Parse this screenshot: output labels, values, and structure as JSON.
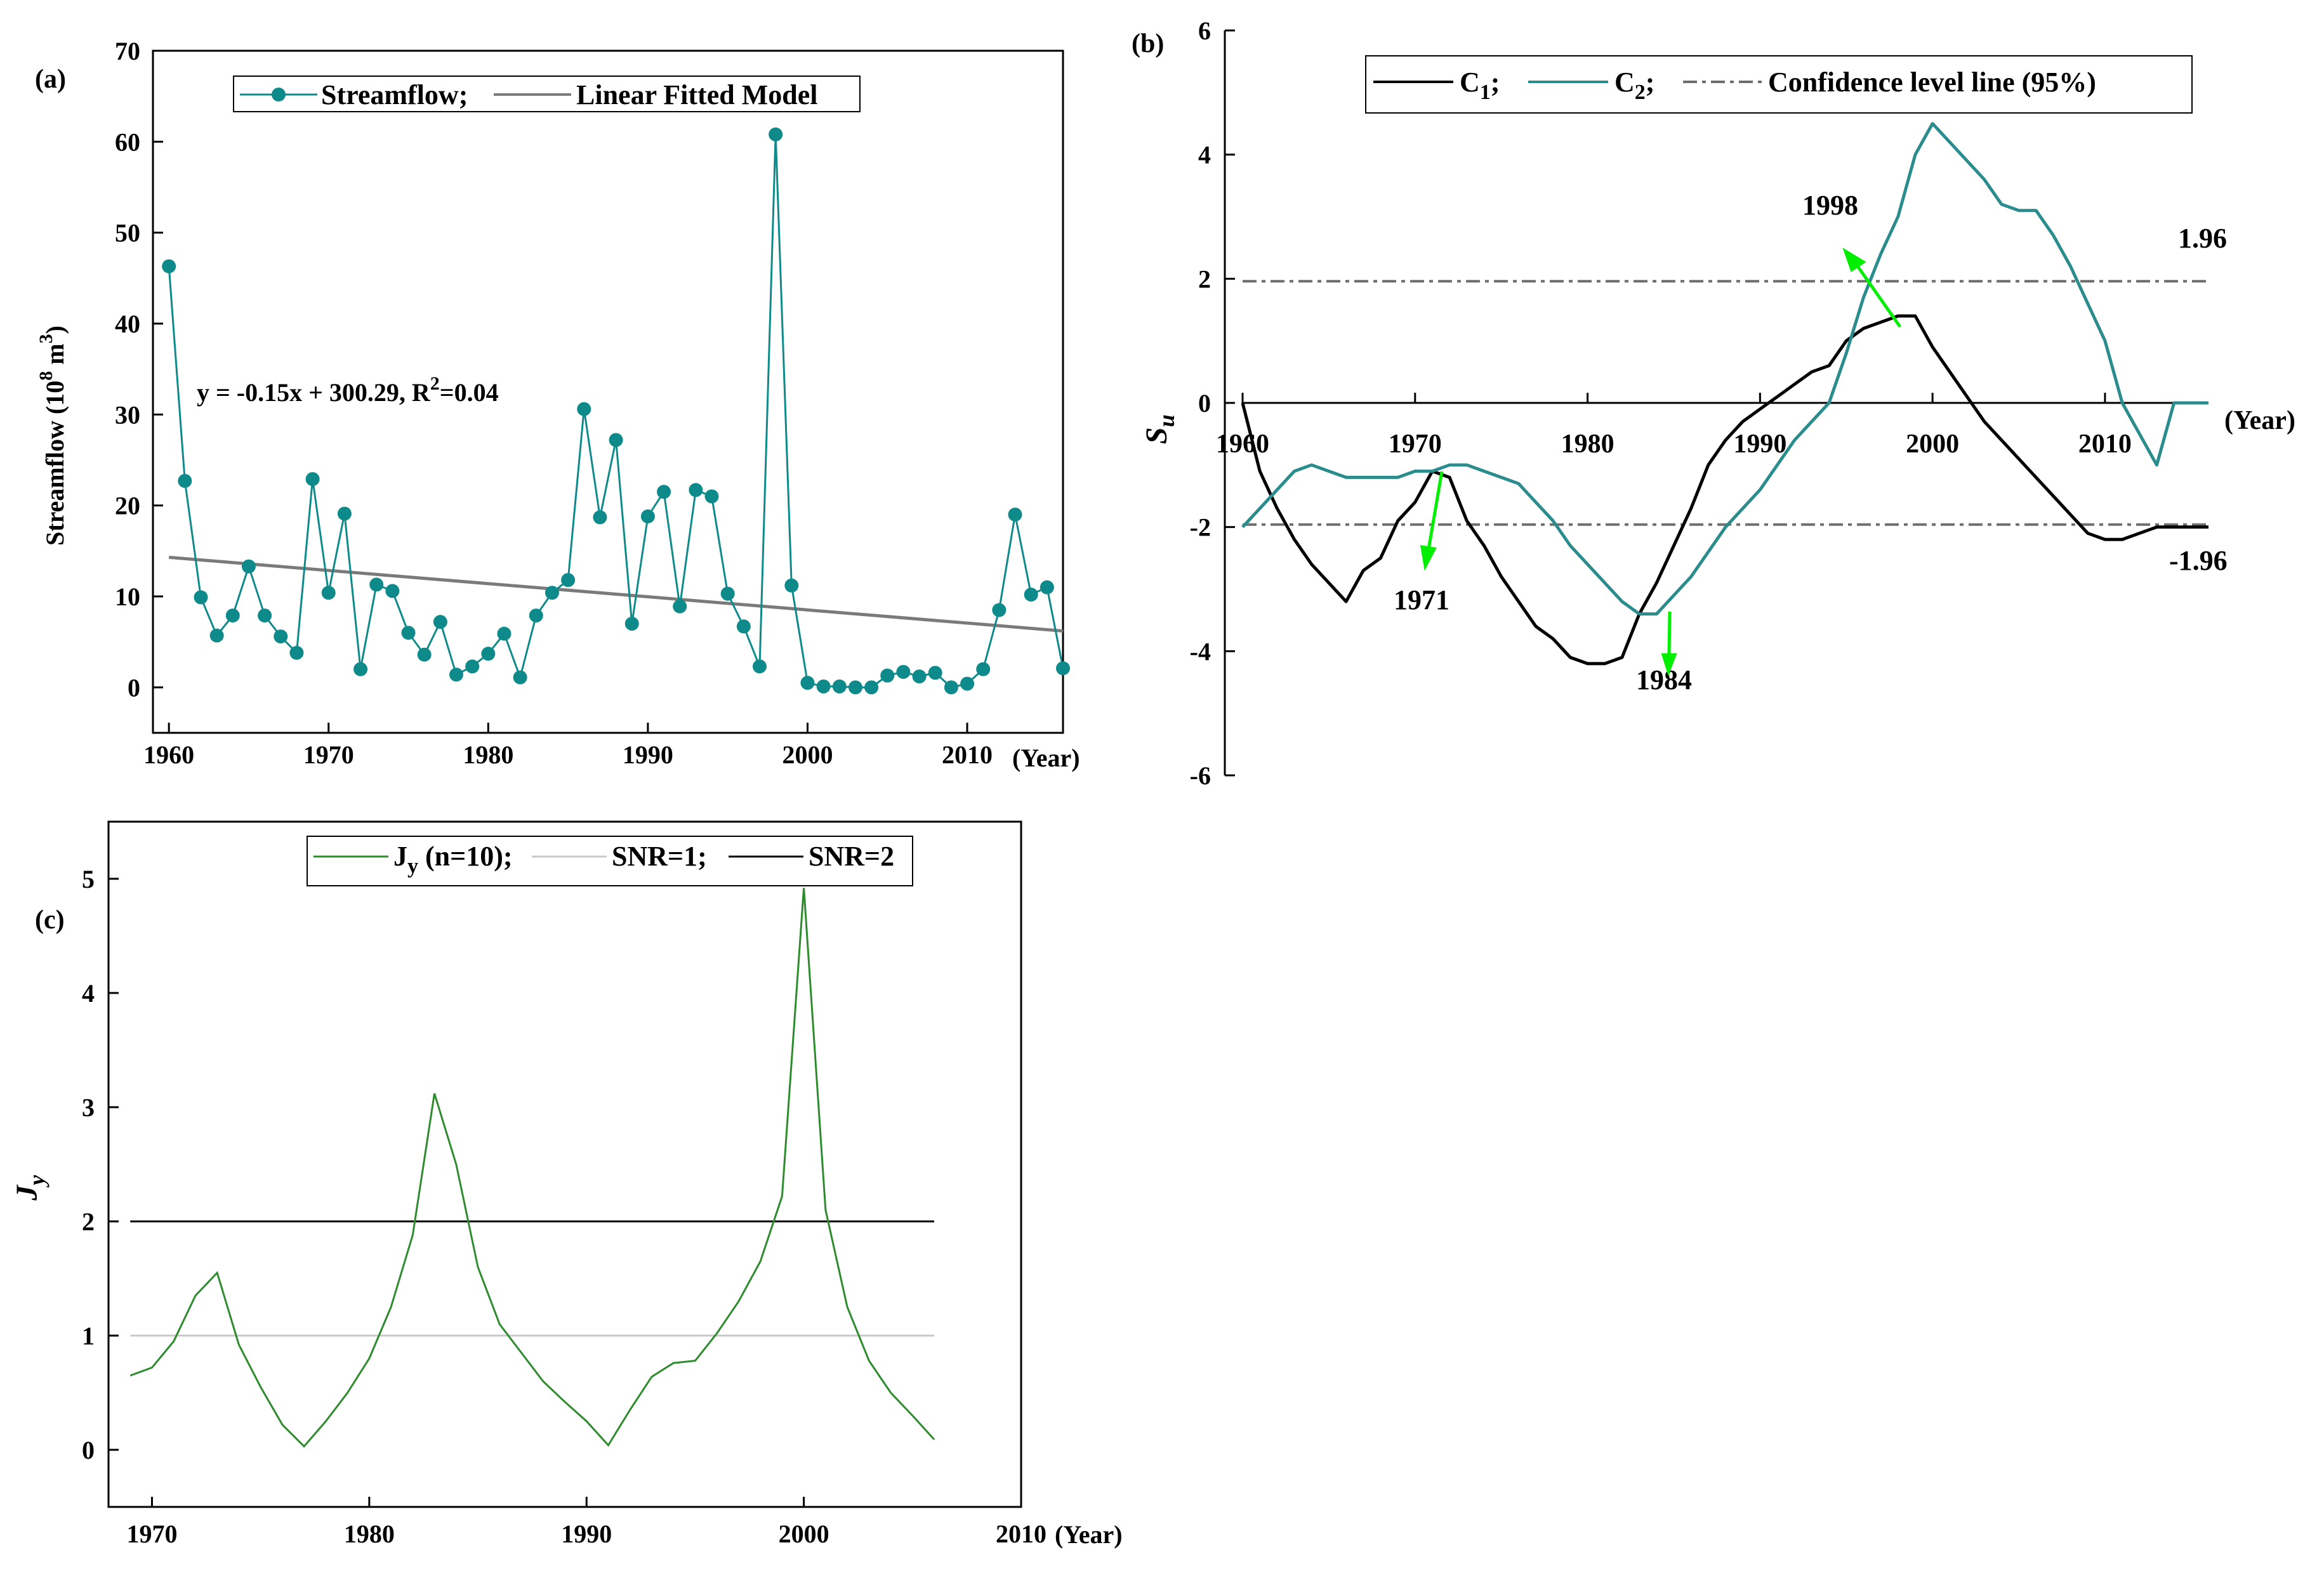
{
  "chart_data": [
    {
      "panel": "(a)",
      "type": "scatter",
      "title": "",
      "xlabel": "(Year)",
      "ylabel": "Streamflow (10^8 m^3)",
      "ylabel_base": "Streamflow (10",
      "ylabel_exp": "8",
      "ylabel_unit": " m",
      "ylabel_unit_exp": "3",
      "ylabel_close": ")",
      "xlim": [
        1959,
        2016
      ],
      "ylim": [
        -5,
        70
      ],
      "xticks": [
        1960,
        1970,
        1980,
        1990,
        2000,
        2010
      ],
      "yticks": [
        0,
        10,
        20,
        30,
        40,
        50,
        60,
        70
      ],
      "legend": [
        "Streamflow;",
        "Linear Fitted Model"
      ],
      "legend_placement": "top-center",
      "annotation": {
        "pre": "y = -0.15x + 300.29, R",
        "sup": "2",
        "post": "=0.04"
      },
      "series": [
        {
          "name": "Streamflow",
          "color": "#0f8a8a",
          "x": [
            1960,
            1961,
            1962,
            1963,
            1964,
            1965,
            1966,
            1967,
            1968,
            1969,
            1970,
            1971,
            1972,
            1973,
            1974,
            1975,
            1976,
            1977,
            1978,
            1979,
            1980,
            1981,
            1982,
            1983,
            1984,
            1985,
            1986,
            1987,
            1988,
            1989,
            1990,
            1991,
            1992,
            1993,
            1994,
            1995,
            1996,
            1997,
            1998,
            1999,
            2000,
            2001,
            2002,
            2003,
            2004,
            2005,
            2006,
            2007,
            2008,
            2009,
            2010,
            2011,
            2012,
            2013,
            2014,
            2015,
            2016
          ],
          "values": [
            46.3,
            22.7,
            9.9,
            5.7,
            7.9,
            13.3,
            7.9,
            5.6,
            3.8,
            22.9,
            10.4,
            19.1,
            2.0,
            11.3,
            10.6,
            6.0,
            3.6,
            7.2,
            1.4,
            2.3,
            3.7,
            5.9,
            1.1,
            7.9,
            10.4,
            11.8,
            30.6,
            18.7,
            27.2,
            7.0,
            18.8,
            21.5,
            8.9,
            21.7,
            21.0,
            10.3,
            6.7,
            2.3,
            60.8,
            11.2,
            0.5,
            0.1,
            0.1,
            0.0,
            0.0,
            1.3,
            1.7,
            1.2,
            1.6,
            0.0,
            0.4,
            2.0,
            8.5,
            19.0,
            10.2,
            11.0,
            2.1
          ]
        },
        {
          "name": "Linear Fitted Model",
          "color": "#7a7a7a",
          "x": [
            1960,
            2016
          ],
          "values": [
            14.3,
            6.2
          ]
        }
      ]
    },
    {
      "panel": "(b)",
      "type": "line",
      "title": "",
      "xlabel": "(Year)",
      "ylabel": "Su",
      "ylabel_main": "S",
      "ylabel_sub": "u",
      "xlim": [
        1960,
        2016
      ],
      "ylim": [
        -6,
        6
      ],
      "xticks": [
        1960,
        1970,
        1980,
        1990,
        2000,
        2010
      ],
      "yticks": [
        -6,
        -4,
        -2,
        0,
        2,
        4,
        6
      ],
      "legend": [
        {
          "main": "C",
          "sub": "1",
          "tail": ";"
        },
        {
          "main": "C",
          "sub": "2",
          "tail": ";"
        },
        {
          "main": "Confidence level  line (95%)",
          "sub": "",
          "tail": ""
        }
      ],
      "legend_placement": "top-right",
      "annotations": [
        "1998",
        "1971",
        "1984",
        "1.96",
        "-1.96"
      ],
      "confidence_level": [
        1.96,
        -1.96
      ],
      "series": [
        {
          "name": "C1",
          "color": "#000000",
          "x": [
            1960,
            1961,
            1962,
            1963,
            1964,
            1965,
            1966,
            1967,
            1968,
            1969,
            1970,
            1971,
            1972,
            1973,
            1974,
            1975,
            1976,
            1977,
            1978,
            1979,
            1980,
            1981,
            1982,
            1983,
            1984,
            1985,
            1986,
            1987,
            1988,
            1989,
            1990,
            1991,
            1992,
            1993,
            1994,
            1995,
            1996,
            1997,
            1998,
            1999,
            2000,
            2001,
            2002,
            2003,
            2004,
            2005,
            2006,
            2007,
            2008,
            2009,
            2010,
            2011,
            2012,
            2013,
            2014,
            2015,
            2016
          ],
          "values": [
            0,
            -1.1,
            -1.7,
            -2.2,
            -2.6,
            -2.9,
            -3.2,
            -2.7,
            -2.5,
            -1.9,
            -1.6,
            -1.1,
            -1.2,
            -1.9,
            -2.3,
            -2.8,
            -3.2,
            -3.6,
            -3.8,
            -4.1,
            -4.2,
            -4.2,
            -4.1,
            -3.4,
            -2.9,
            -2.3,
            -1.7,
            -1.0,
            -0.6,
            -0.3,
            -0.1,
            0.1,
            0.3,
            0.5,
            0.6,
            1.0,
            1.2,
            1.3,
            1.4,
            1.4,
            0.9,
            0.5,
            0.1,
            -0.3,
            -0.6,
            -0.9,
            -1.2,
            -1.5,
            -1.8,
            -2.1,
            -2.2,
            -2.2,
            -2.1,
            -2.0,
            -2.0,
            -2.0,
            -2.0
          ]
        },
        {
          "name": "C2",
          "color": "#2a8c8c",
          "x": [
            1960,
            1961,
            1962,
            1963,
            1964,
            1965,
            1966,
            1967,
            1968,
            1969,
            1970,
            1971,
            1972,
            1973,
            1974,
            1975,
            1976,
            1977,
            1978,
            1979,
            1980,
            1981,
            1982,
            1983,
            1984,
            1985,
            1986,
            1987,
            1988,
            1989,
            1990,
            1991,
            1992,
            1993,
            1994,
            1995,
            1996,
            1997,
            1998,
            1999,
            2000,
            2001,
            2002,
            2003,
            2004,
            2005,
            2006,
            2007,
            2008,
            2009,
            2010,
            2011,
            2012,
            2013,
            2014,
            2015,
            2016
          ],
          "values": [
            -2.0,
            -1.7,
            -1.4,
            -1.1,
            -1.0,
            -1.1,
            -1.2,
            -1.2,
            -1.2,
            -1.2,
            -1.1,
            -1.1,
            -1.0,
            -1.0,
            -1.1,
            -1.2,
            -1.3,
            -1.6,
            -1.9,
            -2.3,
            -2.6,
            -2.9,
            -3.2,
            -3.4,
            -3.4,
            -3.1,
            -2.8,
            -2.4,
            -2.0,
            -1.7,
            -1.4,
            -1.0,
            -0.6,
            -0.3,
            0.0,
            0.8,
            1.7,
            2.4,
            3.0,
            4.0,
            4.5,
            4.2,
            3.9,
            3.6,
            3.2,
            3.1,
            3.1,
            2.7,
            2.2,
            1.6,
            1.0,
            0.0,
            -0.5,
            -1.0,
            0.0,
            0.0,
            0.0
          ]
        },
        {
          "name": "Confidence level line (95%)",
          "color": "#6e6e6e",
          "values": [
            1.96,
            -1.96
          ]
        }
      ]
    },
    {
      "panel": "(c)",
      "type": "line",
      "title": "",
      "xlabel": "(Year)",
      "ylabel": "Jy",
      "ylabel_main": "J",
      "ylabel_sub": "y",
      "xlim": [
        1968,
        2010
      ],
      "ylim": [
        -0.5,
        5.5
      ],
      "xticks": [
        1970,
        1980,
        1990,
        2000,
        2010
      ],
      "yticks": [
        0,
        1,
        2,
        3,
        4,
        5
      ],
      "legend": [
        {
          "main": "J",
          "sub": "y",
          "tail": " (n=10);"
        },
        {
          "main": "SNR=1;",
          "sub": "",
          "tail": ""
        },
        {
          "main": "SNR=2",
          "sub": "",
          "tail": ""
        }
      ],
      "legend_placement": "top-center",
      "series": [
        {
          "name": "Jy (n=10)",
          "color": "#2e8b2e",
          "x": [
            1969,
            1970,
            1971,
            1972,
            1973,
            1974,
            1975,
            1976,
            1977,
            1978,
            1979,
            1980,
            1981,
            1982,
            1983,
            1984,
            1985,
            1986,
            1987,
            1988,
            1989,
            1990,
            1991,
            1992,
            1993,
            1994,
            1995,
            1996,
            1997,
            1998,
            1999,
            2000,
            2001,
            2002,
            2003,
            2004,
            2005,
            2006
          ],
          "values": [
            0.65,
            0.72,
            0.95,
            1.35,
            1.55,
            0.92,
            0.55,
            0.22,
            0.03,
            0.25,
            0.5,
            0.8,
            1.25,
            1.88,
            3.12,
            2.5,
            1.6,
            1.1,
            0.85,
            0.6,
            0.42,
            0.25,
            0.04,
            0.35,
            0.64,
            0.76,
            0.78,
            1.02,
            1.3,
            1.65,
            2.22,
            4.92,
            2.1,
            1.25,
            0.78,
            0.5,
            0.3,
            0.09
          ]
        },
        {
          "name": "SNR=1",
          "color": "#c8c8c8",
          "x": [
            1969,
            2006
          ],
          "values": [
            1,
            1
          ]
        },
        {
          "name": "SNR=2",
          "color": "#000000",
          "x": [
            1969,
            2006
          ],
          "values": [
            2,
            2
          ]
        }
      ]
    }
  ]
}
